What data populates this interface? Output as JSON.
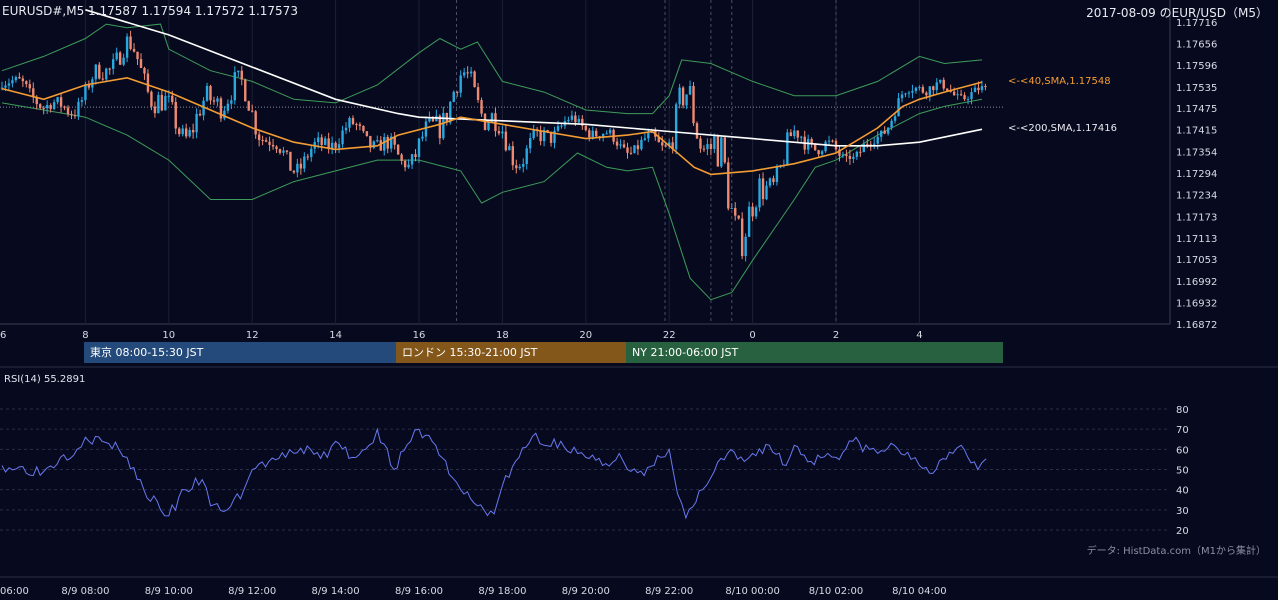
{
  "header": {
    "symbol_line": "EURUSD#,M5 1.17587 1.17594 1.17572 1.17573",
    "title": "2017-08-09 のEUR/USD（M5）"
  },
  "sessions": [
    {
      "label": "東京 08:00-15:30 JST",
      "color": "#234a7a"
    },
    {
      "label": "ロンドン 15:30-21:00 JST",
      "color": "#83561a"
    },
    {
      "label": "NY 21:00-06:00 JST",
      "color": "#28613f"
    }
  ],
  "annotations": {
    "sma40": "<-<40,SMA,1.17548",
    "sma200": "<-<200,SMA,1.17416"
  },
  "rsi": {
    "label": "RSI(14) 55.2891"
  },
  "source_note": "データ: HistData.com（M1から集計）",
  "colors": {
    "background": "#070a1e",
    "bull": "#2aa8e0",
    "bear": "#ee8a72",
    "sma40": "#f39c34",
    "sma200": "#ffffff",
    "bollinger": "#3e9c5a",
    "rsi": "#6878f0"
  },
  "chart_data": [
    {
      "type": "candlestick",
      "title": "2017-08-09 のEUR/USD（M5）",
      "timeframe": "M5",
      "x_tick_labels": [
        "6",
        "8",
        "10",
        "12",
        "14",
        "16",
        "18",
        "20",
        "22",
        "0",
        "2",
        "4"
      ],
      "y_tick_labels": [
        "1.17716",
        "1.17656",
        "1.17596",
        "1.17535",
        "1.17475",
        "1.17415",
        "1.17354",
        "1.17294",
        "1.17234",
        "1.17173",
        "1.17113",
        "1.17053",
        "1.16992",
        "1.16932",
        "1.16872"
      ],
      "ylim": [
        1.16872,
        1.17716
      ],
      "last_close": 1.17573,
      "dotted_level": 1.17478,
      "series": [
        {
          "name": "<-<40,SMA,1.17548",
          "type": "line",
          "points": [
            [
              6,
              1.1753
            ],
            [
              7,
              1.175
            ],
            [
              8,
              1.1754
            ],
            [
              9,
              1.1756
            ],
            [
              10,
              1.1752
            ],
            [
              11,
              1.1747
            ],
            [
              12,
              1.1742
            ],
            [
              13,
              1.1738
            ],
            [
              14,
              1.1736
            ],
            [
              15,
              1.1737
            ],
            [
              15.5,
              1.174
            ],
            [
              16.5,
              1.1743
            ],
            [
              17,
              1.1745
            ],
            [
              18,
              1.1743
            ],
            [
              19,
              1.1741
            ],
            [
              20,
              1.1739
            ],
            [
              21,
              1.174
            ],
            [
              21.6,
              1.1741
            ],
            [
              22,
              1.1737
            ],
            [
              22.6,
              1.1731
            ],
            [
              23,
              1.1729
            ],
            [
              0,
              1.173
            ],
            [
              1,
              1.1732
            ],
            [
              2,
              1.1735
            ],
            [
              3,
              1.1742
            ],
            [
              3.6,
              1.1748
            ],
            [
              4,
              1.175
            ],
            [
              4.6,
              1.1752
            ],
            [
              5.5,
              1.17548
            ]
          ]
        },
        {
          "name": "<-<200,SMA,1.17416",
          "type": "line",
          "points": [
            [
              8,
              1.1775
            ],
            [
              10,
              1.1768
            ],
            [
              12,
              1.1759
            ],
            [
              14,
              1.175
            ],
            [
              15.5,
              1.1746
            ],
            [
              16,
              1.1745
            ],
            [
              18,
              1.1744
            ],
            [
              20,
              1.1743
            ],
            [
              22,
              1.1741
            ],
            [
              23,
              1.174
            ],
            [
              0,
              1.1739
            ],
            [
              2,
              1.1737
            ],
            [
              3,
              1.1737
            ],
            [
              4,
              1.1738
            ],
            [
              5.5,
              1.17416
            ]
          ]
        },
        {
          "name": "Bollinger upper",
          "type": "line",
          "points": [
            [
              6,
              1.1758
            ],
            [
              7,
              1.1762
            ],
            [
              8,
              1.1767
            ],
            [
              8.5,
              1.1771
            ],
            [
              9,
              1.177
            ],
            [
              9.8,
              1.1771
            ],
            [
              10,
              1.1764
            ],
            [
              11,
              1.1758
            ],
            [
              12,
              1.1755
            ],
            [
              13,
              1.175
            ],
            [
              14,
              1.1749
            ],
            [
              15,
              1.1754
            ],
            [
              16,
              1.1763
            ],
            [
              16.5,
              1.1767
            ],
            [
              17,
              1.1764
            ],
            [
              17.4,
              1.1766
            ],
            [
              18,
              1.1755
            ],
            [
              19,
              1.1752
            ],
            [
              20,
              1.1747
            ],
            [
              21,
              1.1746
            ],
            [
              21.6,
              1.1746
            ],
            [
              22,
              1.1751
            ],
            [
              22.3,
              1.1761
            ],
            [
              23,
              1.176
            ],
            [
              0,
              1.1755
            ],
            [
              1,
              1.1751
            ],
            [
              2,
              1.1751
            ],
            [
              3,
              1.1755
            ],
            [
              4,
              1.1762
            ],
            [
              4.6,
              1.176
            ],
            [
              5.5,
              1.1761
            ]
          ]
        },
        {
          "name": "Bollinger lower",
          "type": "line",
          "points": [
            [
              6,
              1.1749
            ],
            [
              7,
              1.1747
            ],
            [
              8,
              1.1745
            ],
            [
              9,
              1.174
            ],
            [
              10,
              1.1733
            ],
            [
              11,
              1.1722
            ],
            [
              12,
              1.1722
            ],
            [
              13,
              1.1727
            ],
            [
              14,
              1.173
            ],
            [
              15,
              1.1733
            ],
            [
              16,
              1.1733
            ],
            [
              17,
              1.173
            ],
            [
              17.5,
              1.1721
            ],
            [
              18,
              1.1724
            ],
            [
              19,
              1.1727
            ],
            [
              19.8,
              1.1735
            ],
            [
              20.5,
              1.1731
            ],
            [
              21,
              1.173
            ],
            [
              21.6,
              1.1731
            ],
            [
              22,
              1.1718
            ],
            [
              22.5,
              1.17
            ],
            [
              23,
              1.1694
            ],
            [
              23.5,
              1.1696
            ],
            [
              0,
              1.1705
            ],
            [
              1,
              1.1722
            ],
            [
              1.5,
              1.1731
            ],
            [
              2,
              1.1733
            ],
            [
              3,
              1.174
            ],
            [
              4,
              1.1746
            ],
            [
              4.6,
              1.1748
            ],
            [
              5.5,
              1.175
            ]
          ]
        }
      ]
    },
    {
      "type": "line",
      "title": "RSI(14) 55.2891",
      "y_tick_labels": [
        "80",
        "70",
        "60",
        "50",
        "40",
        "30",
        "20"
      ],
      "ylim": [
        20,
        80
      ],
      "x_tick_labels": [
        "06:00",
        "8/9 08:00",
        "8/9 10:00",
        "8/9 12:00",
        "8/9 14:00",
        "8/9 16:00",
        "8/9 18:00",
        "8/9 20:00",
        "8/9 22:00",
        "8/10 00:00",
        "8/10 02:00",
        "8/10 04:00"
      ],
      "last_value": 55.2891,
      "key_points": [
        [
          6,
          52
        ],
        [
          7,
          49
        ],
        [
          7.4,
          56
        ],
        [
          7.8,
          60
        ],
        [
          8,
          66
        ],
        [
          8.4,
          64
        ],
        [
          8.8,
          60
        ],
        [
          9,
          56
        ],
        [
          9.4,
          40
        ],
        [
          9.8,
          30
        ],
        [
          10,
          27
        ],
        [
          10.4,
          40
        ],
        [
          10.8,
          45
        ],
        [
          11,
          32
        ],
        [
          11.4,
          30
        ],
        [
          11.8,
          40
        ],
        [
          12,
          50
        ],
        [
          12.4,
          54
        ],
        [
          12.8,
          56
        ],
        [
          13,
          58
        ],
        [
          13.4,
          60
        ],
        [
          13.8,
          56
        ],
        [
          14,
          64
        ],
        [
          14.4,
          56
        ],
        [
          14.8,
          62
        ],
        [
          15,
          70
        ],
        [
          15.4,
          50
        ],
        [
          15.8,
          64
        ],
        [
          16,
          70
        ],
        [
          16.4,
          62
        ],
        [
          16.8,
          46
        ],
        [
          17,
          40
        ],
        [
          17.4,
          32
        ],
        [
          17.8,
          28
        ],
        [
          18,
          42
        ],
        [
          18.4,
          56
        ],
        [
          18.8,
          68
        ],
        [
          19,
          62
        ],
        [
          19.4,
          64
        ],
        [
          19.8,
          58
        ],
        [
          20,
          56
        ],
        [
          20.4,
          52
        ],
        [
          20.8,
          58
        ],
        [
          21,
          50
        ],
        [
          21.4,
          47
        ],
        [
          21.8,
          56
        ],
        [
          22,
          60
        ],
        [
          22.2,
          38
        ],
        [
          22.4,
          26
        ],
        [
          22.8,
          40
        ],
        [
          23,
          46
        ],
        [
          23.4,
          58
        ],
        [
          23.8,
          54
        ],
        [
          0,
          58
        ],
        [
          0.4,
          62
        ],
        [
          0.8,
          52
        ],
        [
          1,
          62
        ],
        [
          1.4,
          54
        ],
        [
          1.8,
          58
        ],
        [
          2,
          56
        ],
        [
          2.4,
          64
        ],
        [
          2.8,
          60
        ],
        [
          3,
          58
        ],
        [
          3.4,
          62
        ],
        [
          3.8,
          55
        ],
        [
          4,
          52
        ],
        [
          4.4,
          50
        ],
        [
          4.8,
          58
        ],
        [
          5,
          62
        ],
        [
          5.4,
          50
        ],
        [
          5.6,
          55.2891
        ]
      ]
    }
  ]
}
